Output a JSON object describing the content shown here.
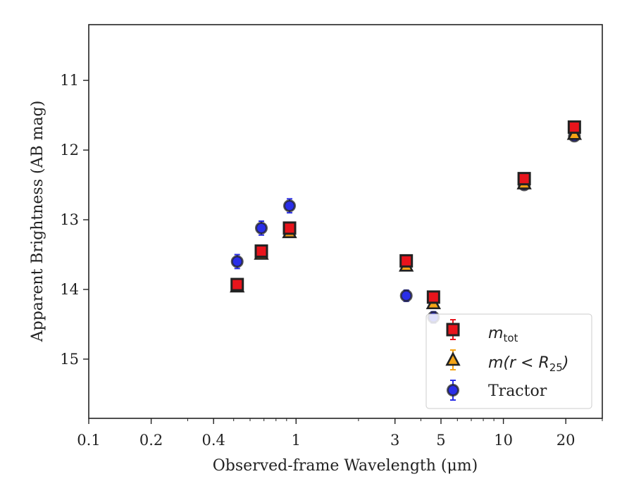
{
  "chart_data": {
    "type": "scatter",
    "xlabel": "Observed-frame Wavelength (μm)",
    "ylabel": "Apparent Brightness (AB mag)",
    "xscale": "log",
    "xlim": [
      0.1,
      30
    ],
    "ylim": [
      15.85,
      10.2
    ],
    "y_inverted": true,
    "x_ticks": [
      0.1,
      0.2,
      0.4,
      1,
      3,
      5,
      10,
      20
    ],
    "x_tick_labels": [
      "0.1",
      "0.2",
      "0.4",
      "1",
      "3",
      "5",
      "10",
      "20"
    ],
    "y_ticks": [
      11,
      12,
      13,
      14,
      15
    ],
    "y_tick_labels": [
      "11",
      "12",
      "13",
      "14",
      "15"
    ],
    "legend_position": "lower-right",
    "series": [
      {
        "key": "tot",
        "legend_main": "m",
        "legend_sub": "tot",
        "marker": "square",
        "color": "#e8141c",
        "x": [
          0.52,
          0.68,
          0.93,
          3.4,
          4.6,
          12.6,
          22.0
        ],
        "y": [
          13.93,
          13.45,
          13.12,
          13.59,
          14.11,
          12.41,
          11.67
        ],
        "err": [
          0.08,
          0.07,
          0.06,
          0.06,
          0.06,
          0.06,
          0.07
        ]
      },
      {
        "key": "r25",
        "legend_main": "m(r < R",
        "legend_sub": "25",
        "legend_tail": ")",
        "marker": "triangle",
        "color": "#f5a416",
        "x": [
          0.52,
          0.68,
          0.93,
          3.4,
          4.6,
          12.6,
          22.0
        ],
        "y": [
          13.96,
          13.49,
          13.18,
          13.66,
          14.2,
          12.48,
          11.77
        ],
        "err": [
          0.06,
          0.06,
          0.06,
          0.06,
          0.06,
          0.06,
          0.06
        ]
      },
      {
        "key": "tractor",
        "legend_main": "Tractor",
        "marker": "circle",
        "color": "#2a2ee8",
        "x": [
          0.52,
          0.68,
          0.93,
          3.4,
          4.6,
          12.6,
          22.0
        ],
        "y": [
          13.6,
          13.12,
          12.8,
          14.09,
          14.4,
          12.5,
          11.8
        ],
        "err": [
          0.1,
          0.1,
          0.1,
          0.08,
          0.08,
          0.06,
          0.06
        ]
      }
    ]
  }
}
